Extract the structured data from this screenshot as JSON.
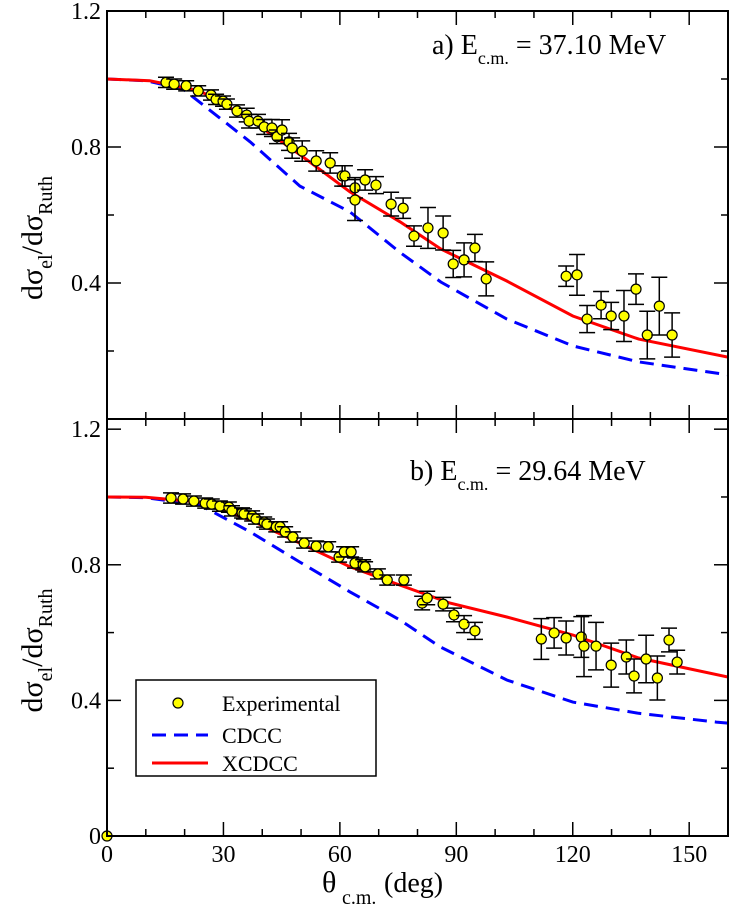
{
  "chart_data": [
    {
      "type": "scatter",
      "panel_label": "a) E",
      "panel_label_sub": "c.m.",
      "panel_label_value": "= 37.10 MeV",
      "xlabel": "θ",
      "xlabel_sub": "c.m.",
      "xlabel_unit": "(deg)",
      "ylabel": "dσ",
      "ylabel_sub1": "el",
      "ylabel_mid": "/dσ",
      "ylabel_sub2": "Ruth",
      "xlim": [
        0,
        160
      ],
      "ylim": [
        0,
        1.2
      ],
      "yticks": [
        "0.4",
        "0.8",
        "1.2"
      ],
      "ytick_values": [
        0.4,
        0.8,
        1.2
      ],
      "series": [
        {
          "name": "Experimental",
          "kind": "points",
          "color": "#ffff00",
          "x": [
            15.2,
            17.3,
            20.4,
            23.5,
            26.8,
            28.1,
            29.9,
            30.9,
            33.5,
            36.0,
            36.6,
            38.9,
            40.5,
            42.5,
            43.8,
            45.1,
            46.9,
            47.7,
            50.3,
            53.9,
            57.5,
            60.6,
            61.3,
            63.9,
            63.9,
            66.5,
            69.3,
            73.2,
            76.3,
            79.1,
            82.7,
            86.6,
            89.2,
            92.0,
            94.8,
            97.7,
            118.3,
            121.1,
            123.7,
            127.3,
            129.9,
            133.2,
            136.3,
            139.2,
            142.3,
            145.6
          ],
          "y": [
            0.99,
            0.985,
            0.98,
            0.965,
            0.953,
            0.94,
            0.935,
            0.926,
            0.906,
            0.894,
            0.876,
            0.876,
            0.859,
            0.856,
            0.83,
            0.85,
            0.815,
            0.797,
            0.788,
            0.759,
            0.753,
            0.715,
            0.715,
            0.68,
            0.644,
            0.703,
            0.688,
            0.632,
            0.62,
            0.538,
            0.562,
            0.547,
            0.456,
            0.468,
            0.503,
            0.412,
            0.42,
            0.424,
            0.294,
            0.335,
            0.303,
            0.303,
            0.382,
            0.247,
            0.332,
            0.247
          ],
          "err": [
            0.015,
            0.015,
            0.015,
            0.015,
            0.015,
            0.015,
            0.015,
            0.015,
            0.018,
            0.02,
            0.02,
            0.02,
            0.022,
            0.025,
            0.02,
            0.03,
            0.025,
            0.03,
            0.03,
            0.03,
            0.03,
            0.03,
            0.03,
            0.03,
            0.06,
            0.03,
            0.025,
            0.035,
            0.03,
            0.03,
            0.06,
            0.05,
            0.04,
            0.05,
            0.04,
            0.05,
            0.03,
            0.06,
            0.04,
            0.04,
            0.04,
            0.075,
            0.045,
            0.07,
            0.085,
            0.065
          ]
        },
        {
          "name": "CDCC",
          "kind": "dashed",
          "color": "#0000ff",
          "x": [
            0,
            10,
            19.6,
            36.9,
            49.7,
            62.6,
            75.5,
            86,
            103,
            120,
            137,
            160
          ],
          "y": [
            1.0,
            0.995,
            0.97,
            0.815,
            0.685,
            0.609,
            0.49,
            0.403,
            0.294,
            0.215,
            0.168,
            0.13
          ]
        },
        {
          "name": "XCDCC",
          "kind": "solid",
          "color": "#ff0000",
          "x": [
            0,
            11,
            24,
            37,
            50,
            62.6,
            75.5,
            86,
            103,
            120,
            137,
            160
          ],
          "y": [
            1.0,
            0.995,
            0.965,
            0.88,
            0.775,
            0.668,
            0.58,
            0.5,
            0.406,
            0.303,
            0.235,
            0.182
          ]
        }
      ]
    },
    {
      "type": "scatter",
      "panel_label": "b) E",
      "panel_label_sub": "c.m.",
      "panel_label_value": "= 29.64 MeV",
      "xlabel": "θ",
      "xlabel_sub": "c.m.",
      "xlabel_unit": "(deg)",
      "ylabel": "dσ",
      "ylabel_sub1": "el",
      "ylabel_mid": "/dσ",
      "ylabel_sub2": "Ruth",
      "xlim": [
        0,
        160
      ],
      "ylim": [
        0,
        1.23
      ],
      "xticks": [
        "0",
        "30",
        "60",
        "90",
        "120",
        "150"
      ],
      "xtick_values": [
        0,
        30,
        60,
        90,
        120,
        150
      ],
      "yticks": [
        "0",
        "0.4",
        "0.8",
        "1.2"
      ],
      "ytick_values": [
        0,
        0.4,
        0.8,
        1.2
      ],
      "legend": {
        "position": "bottom-left",
        "entries": [
          "Experimental",
          "CDCC",
          "XCDCC"
        ]
      },
      "series": [
        {
          "name": "Experimental",
          "kind": "points",
          "color": "#ffff00",
          "x": [
            0,
            16.5,
            19.6,
            22.4,
            25.3,
            27.0,
            29.1,
            31.4,
            32.2,
            34.8,
            35.3,
            37.4,
            38.4,
            40.5,
            41.2,
            43.6,
            44.6,
            45.9,
            47.9,
            50.8,
            53.9,
            57.0,
            59.8,
            61.1,
            62.9,
            63.9,
            66.0,
            66.5,
            69.8,
            72.2,
            76.5,
            81.2,
            82.5,
            86.6,
            89.4,
            92.0,
            94.8,
            111.9,
            115.2,
            118.3,
            122.2,
            122.9,
            126.0,
            129.9,
            133.8,
            135.8,
            138.9,
            141.8,
            144.8,
            146.9
          ],
          "y": [
            0,
            0.997,
            0.994,
            0.988,
            0.982,
            0.979,
            0.973,
            0.97,
            0.959,
            0.953,
            0.95,
            0.944,
            0.935,
            0.926,
            0.92,
            0.912,
            0.912,
            0.897,
            0.882,
            0.864,
            0.855,
            0.853,
            0.823,
            0.838,
            0.838,
            0.805,
            0.8,
            0.794,
            0.773,
            0.755,
            0.755,
            0.687,
            0.702,
            0.684,
            0.652,
            0.625,
            0.605,
            0.581,
            0.599,
            0.584,
            0.587,
            0.56,
            0.56,
            0.504,
            0.528,
            0.472,
            0.522,
            0.466,
            0.578,
            0.513
          ],
          "err": [
            0,
            0.015,
            0.015,
            0.015,
            0.015,
            0.015,
            0.015,
            0.015,
            0.015,
            0.015,
            0.015,
            0.015,
            0.015,
            0.015,
            0.015,
            0.015,
            0.015,
            0.015,
            0.015,
            0.015,
            0.015,
            0.015,
            0.015,
            0.015,
            0.015,
            0.015,
            0.015,
            0.015,
            0.015,
            0.015,
            0.015,
            0.02,
            0.02,
            0.02,
            0.02,
            0.025,
            0.025,
            0.06,
            0.045,
            0.05,
            0.06,
            0.09,
            0.07,
            0.065,
            0.05,
            0.05,
            0.07,
            0.065,
            0.035,
            0.035
          ]
        },
        {
          "name": "CDCC",
          "kind": "dashed",
          "color": "#0000ff",
          "x": [
            0,
            10,
            24,
            36.9,
            49.7,
            62.6,
            75.5,
            85.8,
            103,
            120,
            137,
            157,
            160
          ],
          "y": [
            1.0,
            0.998,
            0.976,
            0.897,
            0.808,
            0.72,
            0.637,
            0.558,
            0.46,
            0.395,
            0.362,
            0.336,
            0.333
          ]
        },
        {
          "name": "XCDCC",
          "kind": "solid",
          "color": "#ff0000",
          "x": [
            0,
            10,
            24,
            36.9,
            49.7,
            62.6,
            75.5,
            88.4,
            103,
            120,
            137,
            160
          ],
          "y": [
            1.0,
            0.999,
            0.985,
            0.932,
            0.864,
            0.794,
            0.74,
            0.687,
            0.646,
            0.593,
            0.525,
            0.469
          ]
        }
      ]
    }
  ]
}
